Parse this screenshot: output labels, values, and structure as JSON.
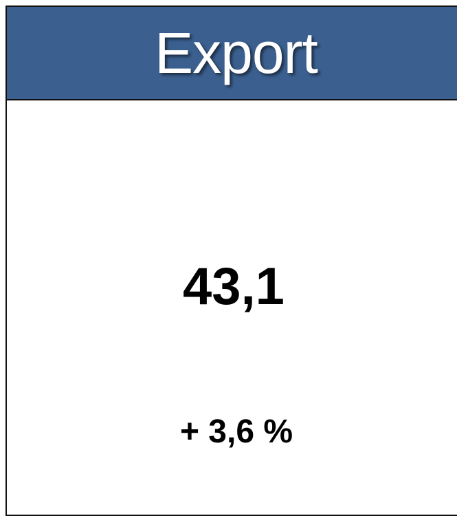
{
  "header": {
    "title": "Export"
  },
  "kpi": {
    "value": "43,1",
    "change": "+ 3,6 %"
  }
}
